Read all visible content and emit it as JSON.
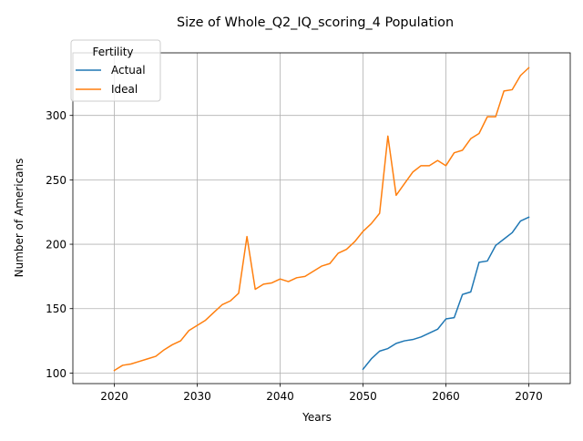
{
  "chart_data": {
    "type": "line",
    "title": "Size of Whole_Q2_IQ_scoring_4 Population",
    "xlabel": "Years",
    "ylabel": "Number of Americans",
    "xlim": [
      2015,
      2075
    ],
    "ylim": [
      91.8,
      348.6
    ],
    "xticks": [
      2020,
      2030,
      2040,
      2050,
      2060,
      2070
    ],
    "yticks": [
      100,
      150,
      200,
      250,
      300
    ],
    "grid": true,
    "legend": {
      "title": "Fertility",
      "placement": "top-left"
    },
    "series": [
      {
        "name": "Actual",
        "color": "#1f77b4",
        "x": [
          2050,
          2051,
          2052,
          2053,
          2054,
          2055,
          2056,
          2057,
          2058,
          2059,
          2060,
          2061,
          2062,
          2063,
          2064,
          2065,
          2066,
          2067,
          2068,
          2069,
          2070
        ],
        "y": [
          103,
          111,
          117,
          119,
          123,
          125,
          126,
          128,
          131,
          134,
          142,
          143,
          161,
          163,
          186,
          187,
          199,
          204,
          209,
          218,
          221
        ]
      },
      {
        "name": "Ideal",
        "color": "#ff7f0e",
        "x": [
          2020,
          2021,
          2022,
          2023,
          2024,
          2025,
          2026,
          2027,
          2028,
          2029,
          2030,
          2031,
          2032,
          2033,
          2034,
          2035,
          2036,
          2037,
          2038,
          2039,
          2040,
          2041,
          2042,
          2043,
          2044,
          2045,
          2046,
          2047,
          2048,
          2049,
          2050,
          2051,
          2052,
          2053,
          2054,
          2055,
          2056,
          2057,
          2058,
          2059,
          2060,
          2061,
          2062,
          2063,
          2064,
          2065,
          2066,
          2067,
          2068,
          2069,
          2070
        ],
        "y": [
          102,
          106,
          107,
          109,
          111,
          113,
          118,
          122,
          125,
          133,
          137,
          141,
          147,
          153,
          156,
          162,
          206,
          165,
          169,
          170,
          173,
          171,
          174,
          175,
          179,
          183,
          185,
          193,
          196,
          202,
          210,
          216,
          224,
          284,
          238,
          247,
          256,
          261,
          261,
          265,
          261,
          271,
          273,
          282,
          286,
          299,
          299,
          319,
          320,
          331,
          337
        ]
      }
    ]
  }
}
